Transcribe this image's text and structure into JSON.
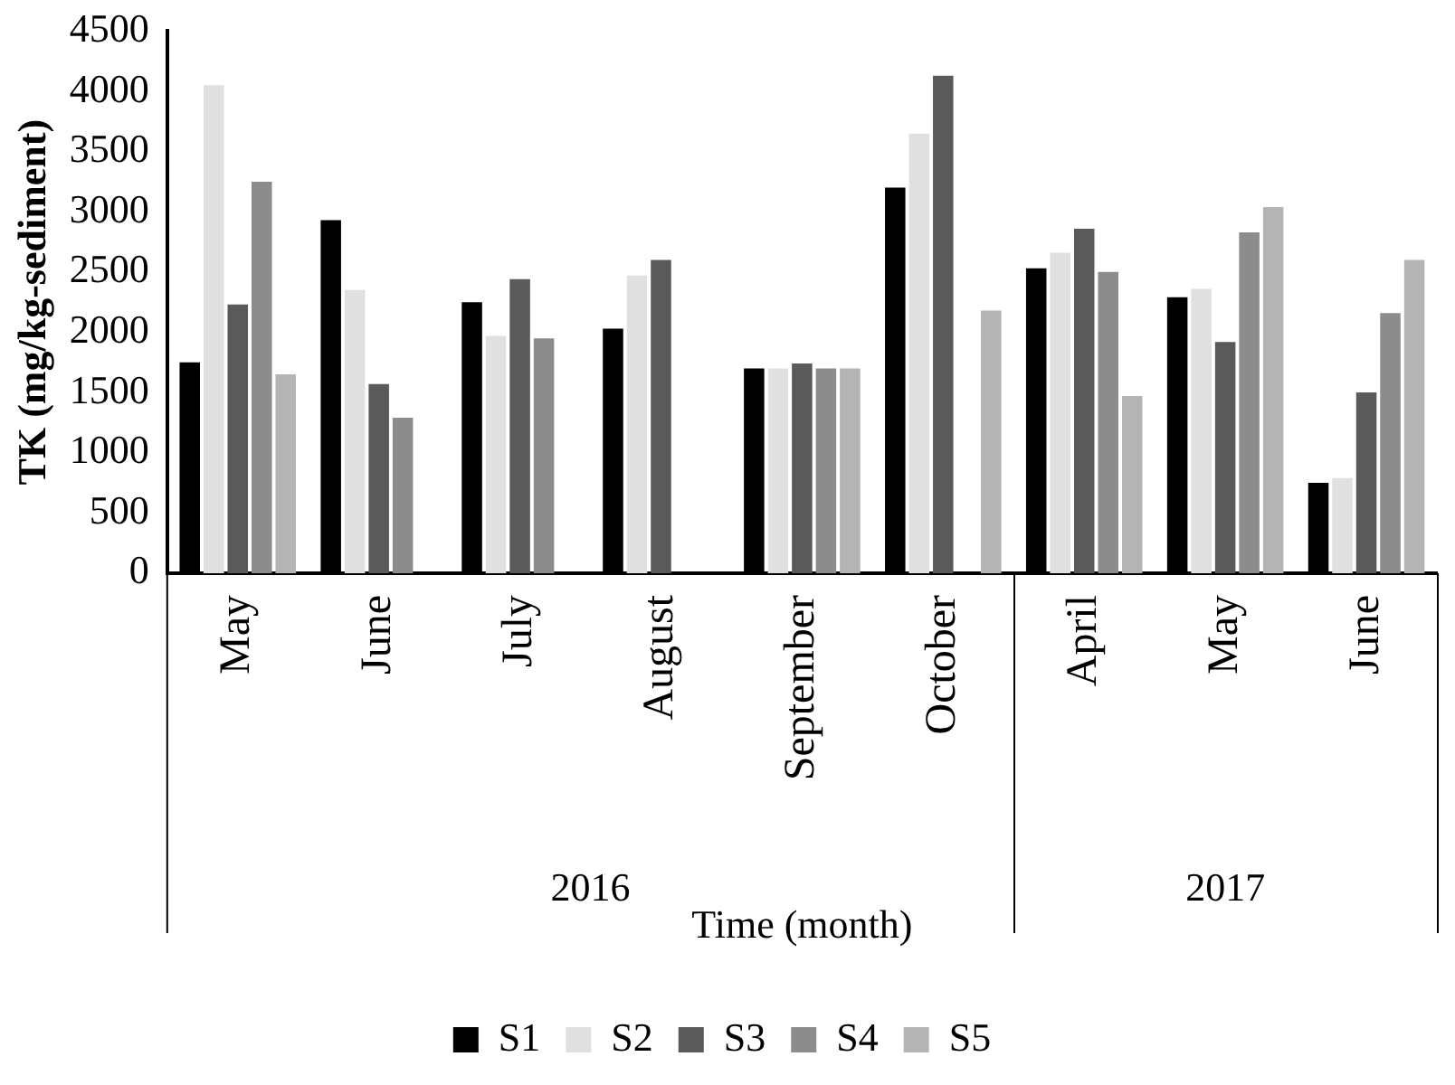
{
  "chart_data": {
    "type": "bar",
    "xlabel": "Time (month)",
    "ylabel": "TK (mg/kg-sediment)",
    "categories": [
      "May",
      "June",
      "July",
      "August",
      "September",
      "October",
      "April",
      "May",
      "June"
    ],
    "series": [
      {
        "name": "S1",
        "color": "#000000",
        "values": [
          1750,
          2930,
          2250,
          2030,
          1700,
          3200,
          2530,
          2290,
          750
        ]
      },
      {
        "name": "S2",
        "color": "#e0e0e0",
        "values": [
          4050,
          2350,
          1970,
          2470,
          1700,
          3650,
          2660,
          2360,
          790
        ]
      },
      {
        "name": "S3",
        "color": "#5a5a5a",
        "values": [
          2230,
          1570,
          2440,
          2600,
          1740,
          4130,
          2860,
          1920,
          1500
        ]
      },
      {
        "name": "S4",
        "color": "#8c8c8c",
        "values": [
          3250,
          1290,
          1950,
          null,
          1700,
          null,
          2500,
          2830,
          2160
        ]
      },
      {
        "name": "S5",
        "color": "#b4b4b4",
        "values": [
          1650,
          null,
          null,
          null,
          1700,
          2180,
          1470,
          3040,
          2600
        ]
      }
    ],
    "ylim": [
      0,
      4500
    ],
    "yticks": [
      0,
      500,
      1000,
      1500,
      2000,
      2500,
      3000,
      3500,
      4000,
      4500
    ],
    "grid": false,
    "legend": "bottom",
    "annotations": [
      "2016",
      "2017"
    ]
  }
}
